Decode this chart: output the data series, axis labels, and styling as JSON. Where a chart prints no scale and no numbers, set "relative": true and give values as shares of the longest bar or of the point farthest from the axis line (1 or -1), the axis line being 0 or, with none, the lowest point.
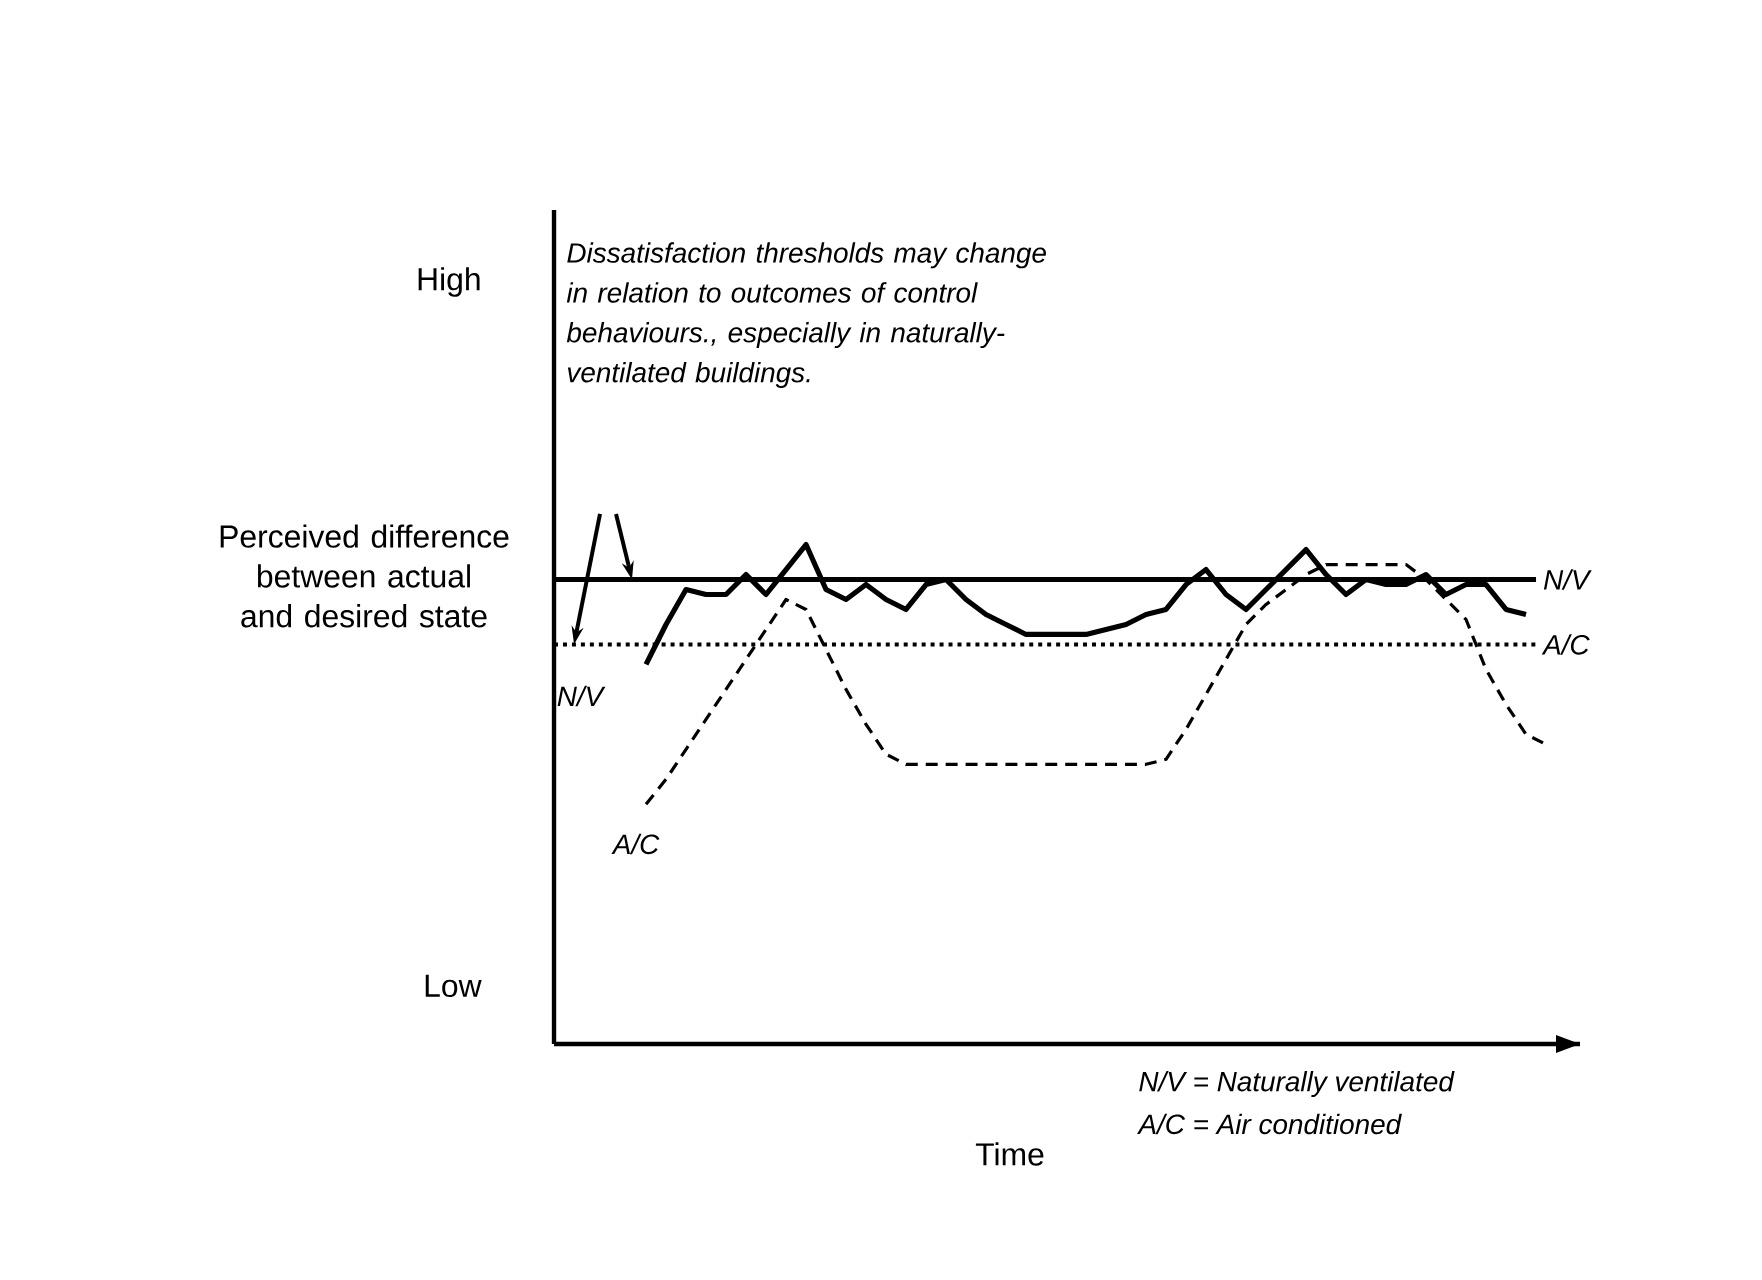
{
  "chart_data": {
    "type": "line",
    "relative": true,
    "xlabel": "Time",
    "ylabel": "Perceived difference between actual and desired state",
    "categories": [
      null,
      null,
      null,
      null,
      null,
      null,
      null,
      null,
      null,
      null,
      null,
      null,
      null,
      null,
      null,
      null,
      null,
      null,
      null,
      null,
      null,
      null,
      null,
      null,
      null,
      null,
      null,
      null,
      null,
      null,
      null,
      null,
      null,
      null,
      null,
      null,
      null,
      null,
      null,
      null,
      null,
      null,
      null,
      null,
      null,
      null,
      null,
      null,
      null,
      null
    ],
    "series": [
      {
        "name": "N/V",
        "color": "#000000",
        "line_style": "solid",
        "values": [
          null,
          null,
          null,
          null,
          0.76,
          0.84,
          0.91,
          0.9,
          0.9,
          0.94,
          0.9,
          0.95,
          1.0,
          0.91,
          0.89,
          0.92,
          0.89,
          0.87,
          0.92,
          0.93,
          0.89,
          0.86,
          0.84,
          0.82,
          0.82,
          0.82,
          0.82,
          0.83,
          0.84,
          0.86,
          0.87,
          0.92,
          0.95,
          0.9,
          0.87,
          0.91,
          0.95,
          0.99,
          0.94,
          0.9,
          0.93,
          0.92,
          0.92,
          0.94,
          0.9,
          0.92,
          0.92,
          0.87,
          0.86,
          null
        ]
      },
      {
        "name": "A/C",
        "color": "#000000",
        "line_style": "dashed",
        "values": [
          null,
          null,
          null,
          null,
          0.48,
          0.53,
          0.59,
          0.65,
          0.71,
          0.77,
          0.83,
          0.89,
          0.87,
          0.79,
          0.71,
          0.64,
          0.58,
          0.56,
          0.56,
          0.56,
          0.56,
          0.56,
          0.56,
          0.56,
          0.56,
          0.56,
          0.56,
          0.56,
          0.56,
          0.56,
          0.57,
          0.63,
          0.7,
          0.77,
          0.84,
          0.88,
          0.91,
          0.94,
          0.96,
          0.96,
          0.96,
          0.96,
          0.96,
          0.93,
          0.89,
          0.85,
          0.75,
          0.68,
          0.62,
          0.6
        ]
      }
    ],
    "ref_lines": [
      {
        "axis": "y",
        "value": 0.93,
        "label": "N/V",
        "color": "#000000",
        "line_style": "solid"
      },
      {
        "axis": "y",
        "value": 0.8,
        "label": "A/C",
        "color": "#000000",
        "line_style": "dotted"
      }
    ],
    "annotations": [
      "High",
      "Low",
      "Dissatisfaction thresholds may change in relation to outcomes of control behaviours., especially in naturally-ventilated buildings.",
      "N/V = Naturally ventilated",
      "A/C = Air conditioned"
    ]
  }
}
